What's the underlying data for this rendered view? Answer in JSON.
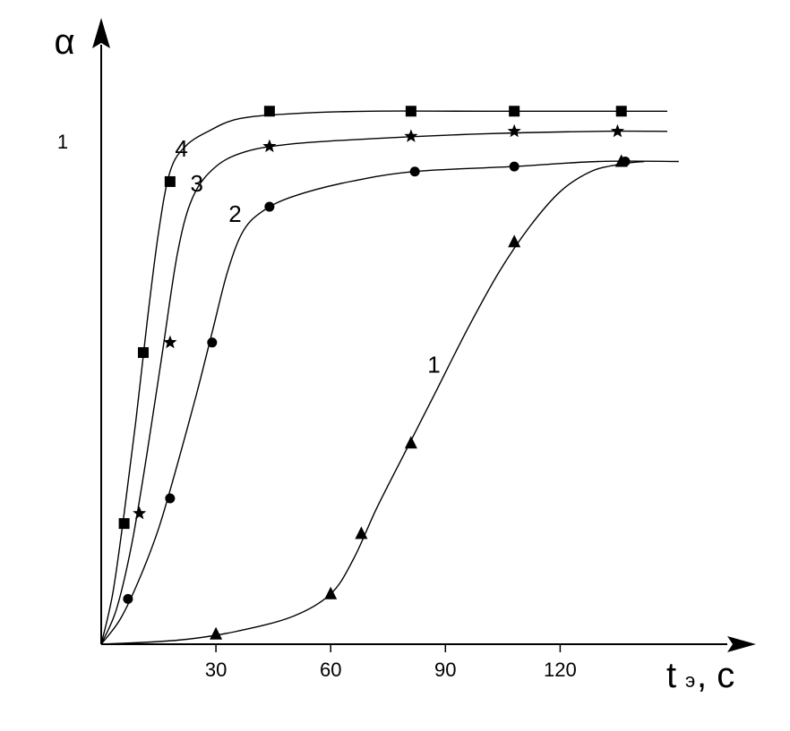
{
  "chart_data": {
    "type": "line",
    "xlabel": "t",
    "xlabel_subscript": "э",
    "xlabel_unit": ", c",
    "ylabel": "α",
    "xlim": [
      0,
      170
    ],
    "ylim": [
      0,
      1.12
    ],
    "x_ticks": [
      30,
      60,
      90,
      120
    ],
    "y_ticks": [
      1
    ],
    "grid": false,
    "series": [
      {
        "name": "1",
        "marker": "triangle",
        "points": [
          [
            30,
            0.02
          ],
          [
            60,
            0.1
          ],
          [
            68,
            0.22
          ],
          [
            81,
            0.4
          ],
          [
            108,
            0.8
          ],
          [
            136,
            0.96
          ]
        ],
        "curve": [
          [
            0,
            0
          ],
          [
            20,
            0.008
          ],
          [
            35,
            0.025
          ],
          [
            50,
            0.055
          ],
          [
            60,
            0.1
          ],
          [
            66,
            0.17
          ],
          [
            72,
            0.27
          ],
          [
            80,
            0.39
          ],
          [
            88,
            0.51
          ],
          [
            96,
            0.63
          ],
          [
            104,
            0.74
          ],
          [
            112,
            0.83
          ],
          [
            120,
            0.9
          ],
          [
            128,
            0.94
          ],
          [
            136,
            0.955
          ],
          [
            142,
            0.96
          ]
        ]
      },
      {
        "name": "2",
        "marker": "circle",
        "points": [
          [
            7,
            0.09
          ],
          [
            18,
            0.29
          ],
          [
            29,
            0.6
          ],
          [
            44,
            0.87
          ],
          [
            82,
            0.94
          ],
          [
            108,
            0.95
          ],
          [
            137,
            0.96
          ]
        ],
        "curve": [
          [
            0,
            0
          ],
          [
            5,
            0.05
          ],
          [
            10,
            0.13
          ],
          [
            15,
            0.23
          ],
          [
            20,
            0.36
          ],
          [
            25,
            0.5
          ],
          [
            29,
            0.62
          ],
          [
            33,
            0.74
          ],
          [
            37,
            0.82
          ],
          [
            42,
            0.86
          ],
          [
            50,
            0.89
          ],
          [
            65,
            0.92
          ],
          [
            82,
            0.94
          ],
          [
            108,
            0.95
          ],
          [
            130,
            0.96
          ],
          [
            151,
            0.96
          ]
        ]
      },
      {
        "name": "3",
        "marker": "star",
        "points": [
          [
            10,
            0.26
          ],
          [
            18,
            0.6
          ],
          [
            44,
            0.99
          ],
          [
            81,
            1.01
          ],
          [
            108,
            1.02
          ],
          [
            135,
            1.02
          ]
        ],
        "curve": [
          [
            0,
            0
          ],
          [
            4,
            0.07
          ],
          [
            8,
            0.2
          ],
          [
            12,
            0.38
          ],
          [
            16,
            0.58
          ],
          [
            20,
            0.78
          ],
          [
            24,
            0.89
          ],
          [
            30,
            0.95
          ],
          [
            38,
            0.98
          ],
          [
            50,
            0.995
          ],
          [
            70,
            1.005
          ],
          [
            100,
            1.015
          ],
          [
            130,
            1.02
          ],
          [
            148,
            1.02
          ]
        ]
      },
      {
        "name": "4",
        "marker": "square",
        "points": [
          [
            6,
            0.24
          ],
          [
            11,
            0.58
          ],
          [
            18,
            0.92
          ],
          [
            44,
            1.06
          ],
          [
            81,
            1.06
          ],
          [
            108,
            1.06
          ],
          [
            136,
            1.06
          ]
        ],
        "curve": [
          [
            0,
            0
          ],
          [
            3,
            0.1
          ],
          [
            6,
            0.26
          ],
          [
            9,
            0.44
          ],
          [
            12,
            0.64
          ],
          [
            15,
            0.82
          ],
          [
            18,
            0.94
          ],
          [
            22,
            0.99
          ],
          [
            28,
            1.02
          ],
          [
            36,
            1.045
          ],
          [
            50,
            1.055
          ],
          [
            70,
            1.06
          ],
          [
            100,
            1.06
          ],
          [
            148,
            1.06
          ]
        ]
      }
    ],
    "curve_labels": [
      {
        "text": "1",
        "x": 87,
        "y": 0.54
      },
      {
        "text": "2",
        "x": 35,
        "y": 0.84
      },
      {
        "text": "3",
        "x": 25,
        "y": 0.9
      },
      {
        "text": "4",
        "x": 21,
        "y": 0.97
      }
    ]
  }
}
